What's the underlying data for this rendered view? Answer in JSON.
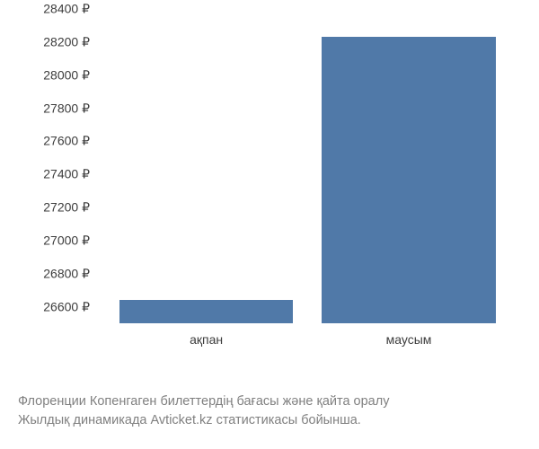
{
  "chart": {
    "type": "bar",
    "ylim": [
      26500,
      28400
    ],
    "yticks": [
      26600,
      26800,
      27000,
      27200,
      27400,
      27600,
      27800,
      28000,
      28200,
      28400
    ],
    "currency_symbol": "₽",
    "categories": [
      "ақпан",
      "маусым"
    ],
    "values": [
      26640,
      28230
    ],
    "bar_color": "#5079a8",
    "bar_width_percent": 42,
    "bar_positions_percent": [
      26,
      75
    ],
    "text_color": "#3d3d3d",
    "caption_color": "#808080",
    "background_color": "#ffffff",
    "tick_fontsize": 14,
    "label_fontsize": 14,
    "caption_fontsize": 14.5
  },
  "caption": {
    "line1": "Флоренции Копенгаген билеттердің бағасы және қайта оралу",
    "line2": "Жылдық динамикада Avticket.kz статистикасы бойынша."
  }
}
